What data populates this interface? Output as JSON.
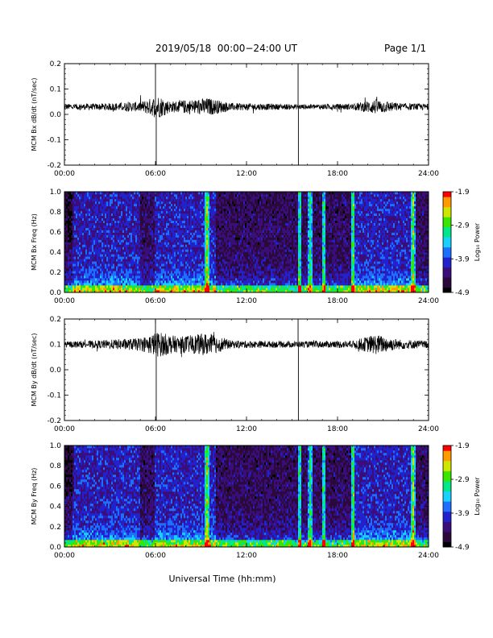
{
  "header": {
    "title": "2019/05/18  00:00−24:00 UT",
    "page": "Page 1/1"
  },
  "colors": {
    "trace": "#000000",
    "colormap": [
      "#000000",
      "#2a0a3a",
      "#3a0e7a",
      "#2222cc",
      "#1f6fff",
      "#19d0ff",
      "#00e68a",
      "#39e600",
      "#cfe600",
      "#ff9a00",
      "#ff0000"
    ]
  },
  "chart_data": [
    {
      "id": "bx-timeseries",
      "type": "line",
      "ylabel": "MCM Bx dB/dt (nT/sec)",
      "x_ticks": [
        "00:00",
        "06:00",
        "12:00",
        "18:00",
        "24:00"
      ],
      "xlim_hours": [
        0,
        24
      ],
      "ylim": [
        -0.2,
        0.2
      ],
      "y_ticks": [
        "-0.2",
        "-0.1",
        "0.0",
        "0.1",
        "0.2"
      ],
      "baseline": 0.03,
      "noise_envelope": [
        {
          "hour": 0,
          "amp": 0.012
        },
        {
          "hour": 2,
          "amp": 0.012
        },
        {
          "hour": 5,
          "amp": 0.02
        },
        {
          "hour": 6.2,
          "amp": 0.045
        },
        {
          "hour": 7,
          "amp": 0.022
        },
        {
          "hour": 9.5,
          "amp": 0.035
        },
        {
          "hour": 11,
          "amp": 0.015
        },
        {
          "hour": 15.5,
          "amp": 0.01
        },
        {
          "hour": 19,
          "amp": 0.012
        },
        {
          "hour": 20.5,
          "amp": 0.03
        },
        {
          "hour": 22,
          "amp": 0.015
        },
        {
          "hour": 24,
          "amp": 0.012
        }
      ],
      "spikes": [
        {
          "hour": 6.0,
          "value": 0.2
        },
        {
          "hour": 6.05,
          "value": -0.2
        },
        {
          "hour": 15.4,
          "value": 0.2
        },
        {
          "hour": 15.42,
          "value": -0.2
        }
      ]
    },
    {
      "id": "bx-spectrogram",
      "type": "heatmap",
      "ylabel": "MCM Bx Freq (Hz)",
      "x_ticks": [
        "00:00",
        "06:00",
        "12:00",
        "18:00",
        "24:00"
      ],
      "ylim": [
        0,
        1.0
      ],
      "y_ticks": [
        "0.0",
        "0.2",
        "0.4",
        "0.6",
        "0.8",
        "1.0"
      ],
      "colorbar": {
        "label": "Log₁₀ Power",
        "ticks": [
          "-1.9",
          "-2.9",
          "-3.9",
          "-4.9"
        ],
        "range": [
          -4.9,
          -1.9
        ]
      },
      "bright_bands_hours": [
        9.4,
        15.5,
        16.2,
        17.1,
        19.0,
        23.0
      ],
      "active_hours": [
        [
          0.5,
          5
        ],
        [
          6,
          10
        ],
        [
          19,
          23
        ]
      ]
    },
    {
      "id": "by-timeseries",
      "type": "line",
      "ylabel": "MCM By dB/dt (nT/sec)",
      "x_ticks": [
        "00:00",
        "06:00",
        "12:00",
        "18:00",
        "24:00"
      ],
      "xlim_hours": [
        0,
        24
      ],
      "ylim": [
        -0.2,
        0.2
      ],
      "y_ticks": [
        "-0.2",
        "-0.1",
        "0.0",
        "0.1",
        "0.2"
      ],
      "baseline": 0.1,
      "noise_envelope": [
        {
          "hour": 0,
          "amp": 0.012
        },
        {
          "hour": 2,
          "amp": 0.015
        },
        {
          "hour": 5,
          "amp": 0.025
        },
        {
          "hour": 6.2,
          "amp": 0.05
        },
        {
          "hour": 7.5,
          "amp": 0.03
        },
        {
          "hour": 9.5,
          "amp": 0.045
        },
        {
          "hour": 11,
          "amp": 0.015
        },
        {
          "hour": 15.5,
          "amp": 0.012
        },
        {
          "hour": 19,
          "amp": 0.015
        },
        {
          "hour": 20.5,
          "amp": 0.04
        },
        {
          "hour": 22,
          "amp": 0.02
        },
        {
          "hour": 24,
          "amp": 0.015
        }
      ],
      "spikes": [
        {
          "hour": 6.0,
          "value": 0.2
        },
        {
          "hour": 6.05,
          "value": -0.2
        },
        {
          "hour": 15.4,
          "value": 0.2
        },
        {
          "hour": 15.42,
          "value": -0.2
        }
      ]
    },
    {
      "id": "by-spectrogram",
      "type": "heatmap",
      "ylabel": "MCM By Freq (Hz)",
      "x_ticks": [
        "00:00",
        "06:00",
        "12:00",
        "18:00",
        "24:00"
      ],
      "ylim": [
        0,
        1.0
      ],
      "y_ticks": [
        "0.0",
        "0.2",
        "0.4",
        "0.6",
        "0.8",
        "1.0"
      ],
      "colorbar": {
        "label": "Log₁₀ Power",
        "ticks": [
          "-1.9",
          "-2.9",
          "-3.9",
          "-4.9"
        ],
        "range": [
          -4.9,
          -1.9
        ]
      },
      "bright_bands_hours": [
        9.4,
        15.5,
        16.2,
        17.1,
        19.0,
        23.0
      ],
      "active_hours": [
        [
          0.5,
          5
        ],
        [
          6,
          10
        ],
        [
          19,
          23
        ]
      ]
    }
  ],
  "footer": {
    "xlabel": "Universal Time (hh:mm)"
  }
}
